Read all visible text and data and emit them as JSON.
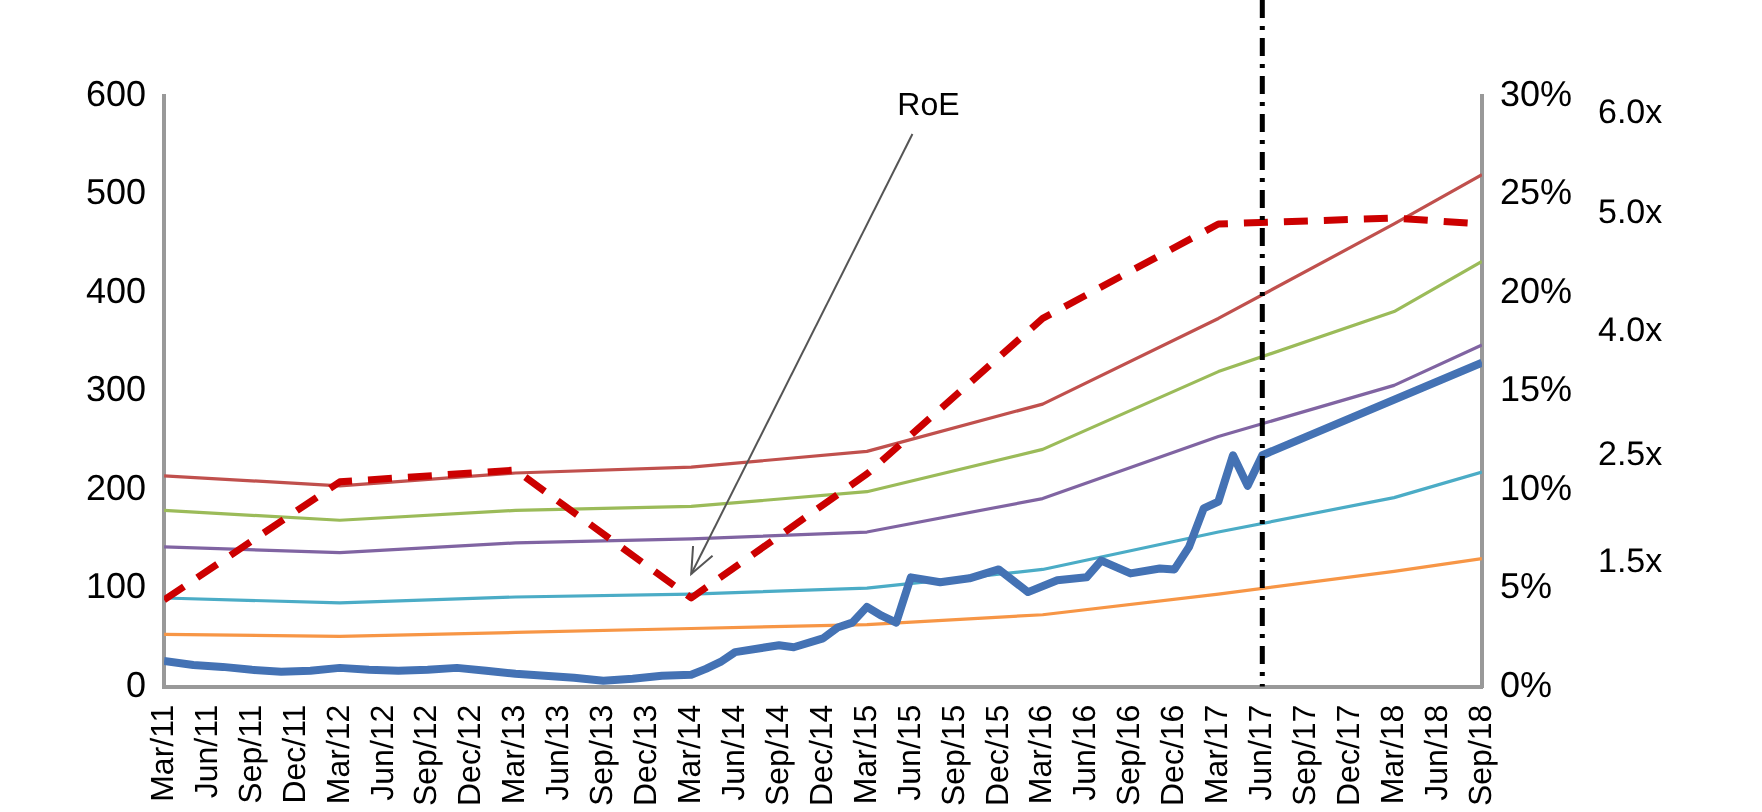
{
  "chart_data": {
    "type": "line",
    "xlim": [
      "2011-03",
      "2018-09"
    ],
    "xticks": [
      {
        "value": "2011-03",
        "label": "Mar/11"
      },
      {
        "value": "2011-06",
        "label": "Jun/11"
      },
      {
        "value": "2011-09",
        "label": "Sep/11"
      },
      {
        "value": "2011-12",
        "label": "Dec/11"
      },
      {
        "value": "2012-03",
        "label": "Mar/12"
      },
      {
        "value": "2012-06",
        "label": "Jun/12"
      },
      {
        "value": "2012-09",
        "label": "Sep/12"
      },
      {
        "value": "2012-12",
        "label": "Dec/12"
      },
      {
        "value": "2013-03",
        "label": "Mar/13"
      },
      {
        "value": "2013-06",
        "label": "Jun/13"
      },
      {
        "value": "2013-09",
        "label": "Sep/13"
      },
      {
        "value": "2013-12",
        "label": "Dec/13"
      },
      {
        "value": "2014-03",
        "label": "Mar/14"
      },
      {
        "value": "2014-06",
        "label": "Jun/14"
      },
      {
        "value": "2014-09",
        "label": "Sep/14"
      },
      {
        "value": "2014-12",
        "label": "Dec/14"
      },
      {
        "value": "2015-03",
        "label": "Mar/15"
      },
      {
        "value": "2015-06",
        "label": "Jun/15"
      },
      {
        "value": "2015-09",
        "label": "Sep/15"
      },
      {
        "value": "2015-12",
        "label": "Dec/15"
      },
      {
        "value": "2016-03",
        "label": "Mar/16"
      },
      {
        "value": "2016-06",
        "label": "Jun/16"
      },
      {
        "value": "2016-09",
        "label": "Sep/16"
      },
      {
        "value": "2016-12",
        "label": "Dec/16"
      },
      {
        "value": "2017-03",
        "label": "Mar/17"
      },
      {
        "value": "2017-06",
        "label": "Jun/17"
      },
      {
        "value": "2017-09",
        "label": "Sep/17"
      },
      {
        "value": "2017-12",
        "label": "Dec/17"
      },
      {
        "value": "2018-03",
        "label": "Mar/18"
      },
      {
        "value": "2018-06",
        "label": "Jun/18"
      },
      {
        "value": "2018-09",
        "label": "Sep/18"
      }
    ],
    "ylim": [
      0,
      600
    ],
    "yticks": [
      0,
      100,
      200,
      300,
      400,
      500,
      600
    ],
    "y2lim": [
      0,
      30
    ],
    "y2ticks": [
      {
        "value": 0,
        "label": "0%"
      },
      {
        "value": 5,
        "label": "5%"
      },
      {
        "value": 10,
        "label": "10%"
      },
      {
        "value": 15,
        "label": "15%"
      },
      {
        "value": 20,
        "label": "20%"
      },
      {
        "value": 25,
        "label": "25%"
      },
      {
        "value": 30,
        "label": "30%"
      }
    ],
    "grid": false,
    "legend": false,
    "marker": "none",
    "series": [
      {
        "color": "#f79646",
        "x": [
          "2011-03",
          "2012-03",
          "2013-03",
          "2014-03",
          "2015-03",
          "2016-03",
          "2017-03",
          "2018-03",
          "2018-09"
        ],
        "values": [
          53,
          51,
          55,
          59,
          63,
          73,
          94,
          117,
          130
        ]
      },
      {
        "color": "#4bacc6",
        "x": [
          "2011-03",
          "2012-03",
          "2013-03",
          "2014-03",
          "2015-03",
          "2016-03",
          "2017-03",
          "2018-03",
          "2018-09"
        ],
        "values": [
          90,
          85,
          91,
          94,
          100,
          119,
          157,
          192,
          218
        ]
      },
      {
        "color": "#8064a2",
        "x": [
          "2011-03",
          "2012-03",
          "2013-03",
          "2014-03",
          "2015-03",
          "2016-03",
          "2017-03",
          "2018-03",
          "2018-09"
        ],
        "values": [
          142,
          136,
          146,
          150,
          157,
          191,
          254,
          306,
          347
        ]
      },
      {
        "color": "#9bbb59",
        "x": [
          "2011-03",
          "2012-03",
          "2013-03",
          "2014-03",
          "2015-03",
          "2016-03",
          "2017-03",
          "2018-03",
          "2018-09"
        ],
        "values": [
          179,
          169,
          179,
          183,
          198,
          241,
          320,
          381,
          432
        ]
      },
      {
        "color": "#c0504d",
        "x": [
          "2011-03",
          "2012-03",
          "2013-03",
          "2014-03",
          "2015-03",
          "2016-03",
          "2017-03",
          "2018-03",
          "2018-09"
        ],
        "values": [
          214,
          204,
          217,
          223,
          239,
          287,
          374,
          470,
          520
        ]
      },
      {
        "color": "#4472b4",
        "x": [
          "2011-03",
          "2011-05",
          "2011-07",
          "2011-09",
          "2011-11",
          "2012-01",
          "2012-03",
          "2012-05",
          "2012-07",
          "2012-09",
          "2012-11",
          "2013-01",
          "2013-03",
          "2013-05",
          "2013-07",
          "2013-09",
          "2013-11",
          "2014-01",
          "2014-03",
          "2014-04",
          "2014-05",
          "2014-06",
          "2014-09",
          "2014-10",
          "2014-12",
          "2015-01",
          "2015-02",
          "2015-03",
          "2015-04",
          "2015-05",
          "2015-06",
          "2015-08",
          "2015-10",
          "2015-12",
          "2016-02",
          "2016-04",
          "2016-06",
          "2016-07",
          "2016-09",
          "2016-11",
          "2016-12",
          "2017-01",
          "2017-02",
          "2017-03",
          "2017-04",
          "2017-05",
          "2017-06",
          "2018-09"
        ],
        "values": [
          26,
          22,
          20,
          17,
          15,
          16,
          19,
          17,
          16,
          17,
          19,
          16,
          13,
          11,
          9,
          6,
          8,
          11,
          12,
          18,
          25,
          35,
          42,
          40,
          49,
          60,
          65,
          81,
          72,
          65,
          111,
          106,
          110,
          119,
          96,
          108,
          111,
          128,
          115,
          120,
          119,
          142,
          181,
          188,
          235,
          204,
          235,
          329
        ]
      },
      {
        "color": "#cc0000",
        "axis": "y2",
        "line_style": "dashed",
        "x": [
          "2011-03",
          "2012-03",
          "2013-03",
          "2014-03",
          "2015-03",
          "2016-03",
          "2017-03",
          "2018-03",
          "2018-09"
        ],
        "values": [
          4.4,
          10.4,
          11.0,
          4.5,
          10.8,
          18.7,
          23.5,
          23.8,
          23.5
        ]
      }
    ],
    "ref_lines": [
      {
        "axis": "x",
        "value": "2017-06",
        "color": "#000000",
        "line_style": "dashed"
      }
    ],
    "annotations": [
      "RoE",
      "6.0x",
      "5.0x",
      "4.0x",
      "2.5x",
      "1.5x"
    ]
  }
}
